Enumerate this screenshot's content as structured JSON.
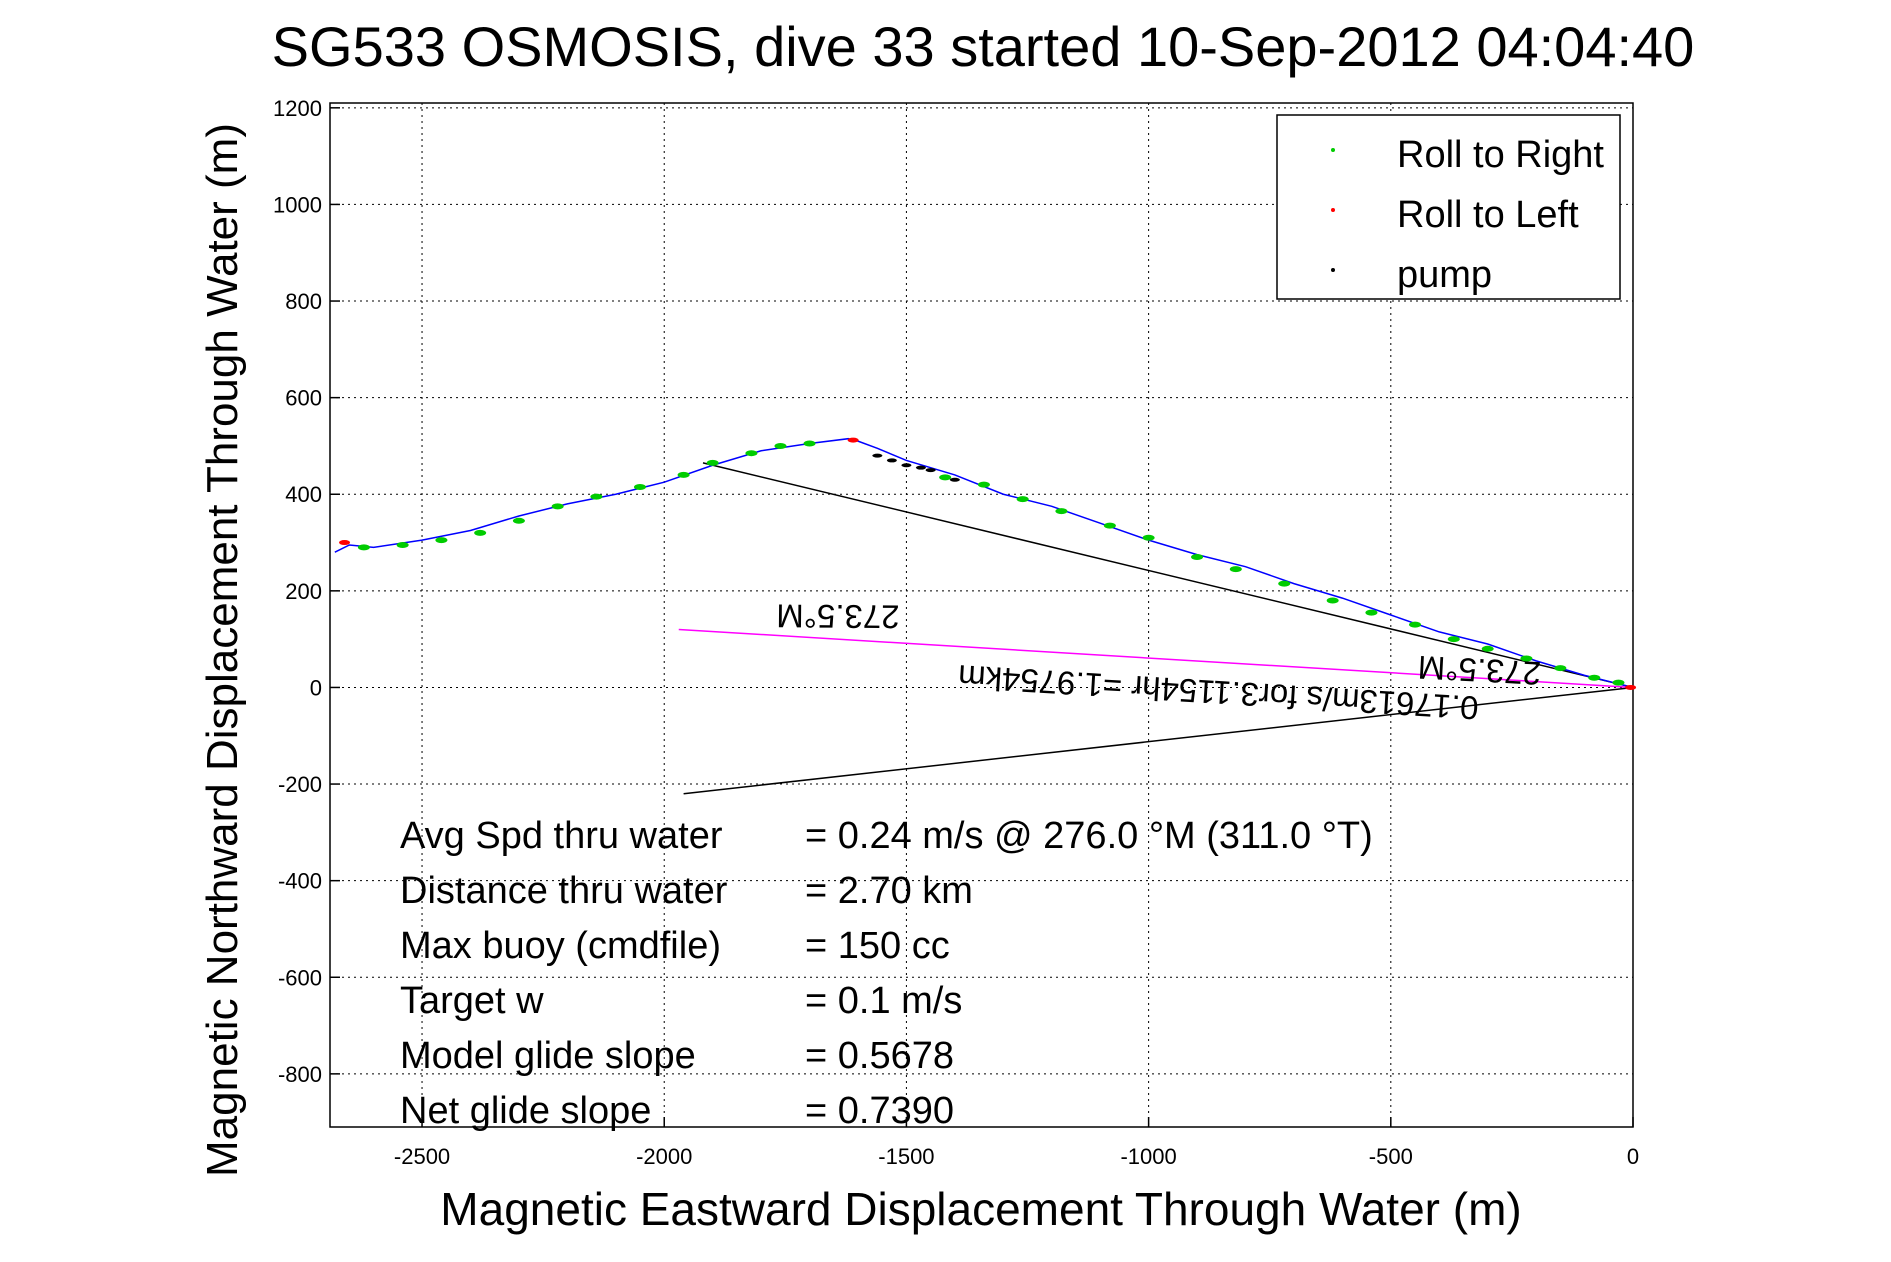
{
  "chart_data": {
    "type": "line",
    "title": "SG533 OSMOSIS, dive 33 started 10-Sep-2012 04:04:40",
    "xlabel": "Magnetic Eastward Displacement Through Water (m)",
    "ylabel": "Magnetic Northward Displacement Through Water (m)",
    "xlim": [
      -2690,
      0
    ],
    "ylim": [
      -910,
      1210
    ],
    "xticks": [
      -2500,
      -2000,
      -1500,
      -1000,
      -500,
      0
    ],
    "yticks": [
      -800,
      -600,
      -400,
      -200,
      0,
      200,
      400,
      600,
      800,
      1000,
      1200
    ],
    "grid": true,
    "legend_position": "top-right",
    "legend": [
      {
        "label": "Roll to Right",
        "color": "#00cc00"
      },
      {
        "label": "Roll to Left",
        "color": "#ff0000"
      },
      {
        "label": "pump",
        "color": "#000000"
      }
    ],
    "track": {
      "name": "track",
      "color": "#0000ff",
      "x": [
        0,
        -100,
        -200,
        -300,
        -400,
        -500,
        -600,
        -700,
        -800,
        -900,
        -1000,
        -1100,
        -1200,
        -1300,
        -1400,
        -1500,
        -1560,
        -1600,
        -1620,
        -1700,
        -1800,
        -1900,
        -2000,
        -2100,
        -2200,
        -2300,
        -2400,
        -2500,
        -2600,
        -2650,
        -2680
      ],
      "y": [
        0,
        25,
        55,
        90,
        115,
        150,
        185,
        215,
        250,
        275,
        305,
        340,
        375,
        400,
        440,
        470,
        495,
        510,
        515,
        505,
        490,
        460,
        425,
        400,
        380,
        355,
        325,
        305,
        290,
        295,
        280
      ]
    },
    "roll_right_points": {
      "x": [
        -30,
        -80,
        -150,
        -220,
        -300,
        -370,
        -450,
        -540,
        -620,
        -720,
        -820,
        -900,
        -1000,
        -1080,
        -1180,
        -1260,
        -1340,
        -1420,
        -1700,
        -1760,
        -1820,
        -1900,
        -1960,
        -2050,
        -2140,
        -2220,
        -2300,
        -2380,
        -2460,
        -2540,
        -2620
      ],
      "y": [
        10,
        20,
        40,
        60,
        80,
        100,
        130,
        155,
        180,
        215,
        245,
        270,
        310,
        335,
        365,
        390,
        420,
        435,
        505,
        500,
        485,
        465,
        440,
        415,
        395,
        375,
        345,
        320,
        305,
        295,
        290
      ]
    },
    "roll_left_points": {
      "x": [
        -5,
        -1610,
        -2660
      ],
      "y": [
        0,
        512,
        300
      ]
    },
    "pump_points": {
      "x": [
        -1560,
        -1530,
        -1500,
        -1470,
        -1450,
        -1400
      ],
      "y": [
        480,
        470,
        460,
        455,
        450,
        430
      ]
    },
    "lines": [
      {
        "name": "upper-bracket",
        "color": "#000000",
        "x": [
          0,
          -1920
        ],
        "y": [
          0,
          465
        ]
      },
      {
        "name": "lower-bracket",
        "color": "#000000",
        "x": [
          0,
          -1960
        ],
        "y": [
          0,
          -220
        ]
      },
      {
        "name": "heading-line",
        "color": "#ff00ff",
        "x": [
          0,
          -1970
        ],
        "y": [
          0,
          120
        ]
      }
    ],
    "annotations": [
      {
        "text": "273.5°M"
      },
      {
        "text": "0.17613m/s for3.1154hr =1.9754km"
      },
      {
        "text": "273.5°M"
      }
    ]
  },
  "stats": [
    {
      "label": "Avg Spd thru water",
      "value": "=  0.24 m/s @ 276.0 °M (311.0 °T)"
    },
    {
      "label": "Distance thru water",
      "value": "=  2.70 km"
    },
    {
      "label": "Max buoy (cmdfile)",
      "value": "= 150 cc"
    },
    {
      "label": "Target w",
      "value": "= 0.1 m/s"
    },
    {
      "label": "Model glide slope",
      "value": "= 0.5678"
    },
    {
      "label": "Net glide slope",
      "value": "= 0.7390"
    }
  ]
}
